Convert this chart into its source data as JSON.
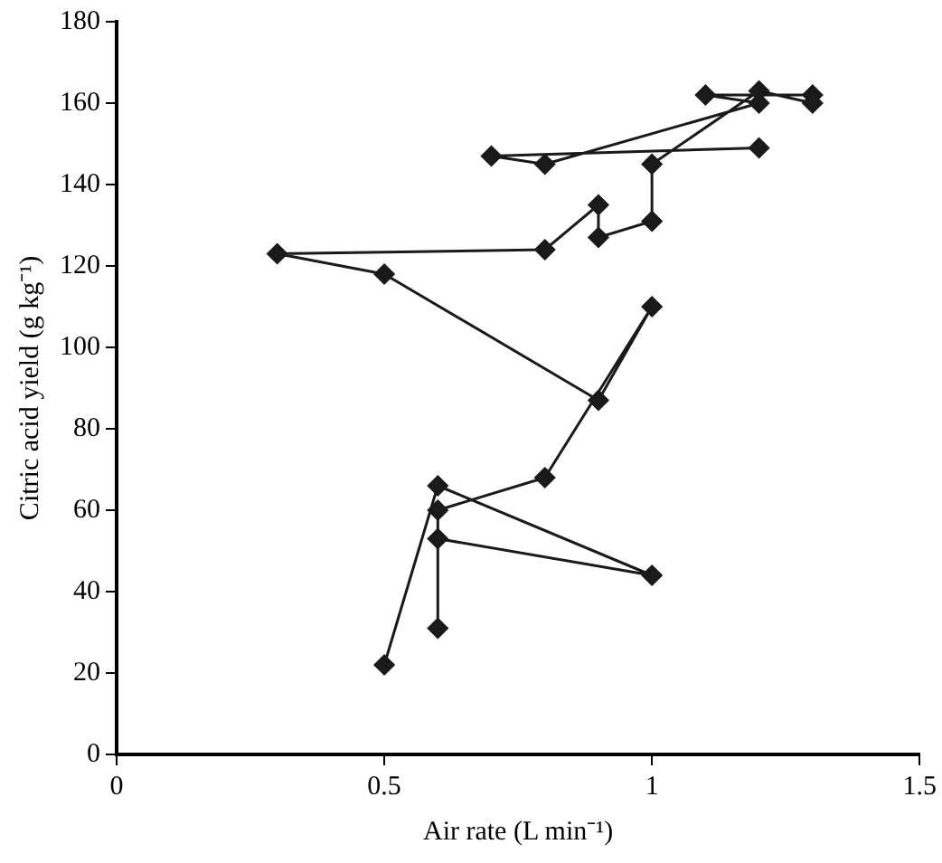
{
  "chart_data": {
    "type": "line",
    "xlabel": "Air rate (L min⁻¹)",
    "ylabel": "Citric acid yield (g kg⁻¹)",
    "x": [
      0.5,
      0.6,
      1.0,
      0.6,
      0.6,
      0.6,
      0.8,
      1.0,
      0.9,
      0.5,
      0.3,
      0.8,
      0.9,
      0.9,
      1.0,
      1.0,
      1.2,
      1.3,
      1.3,
      1.1,
      1.2,
      0.8,
      0.7,
      1.2
    ],
    "series": [
      {
        "color": "#1a1a1a",
        "values": [
          22,
          66,
          44,
          53,
          31,
          60,
          68,
          110,
          87,
          118,
          123,
          124,
          135,
          127,
          131,
          145,
          163,
          160,
          162,
          162,
          160,
          145,
          147,
          149
        ]
      }
    ],
    "xlim": [
      0,
      1.5
    ],
    "xticks": [
      0,
      0.5,
      1,
      1.5
    ],
    "ylim": [
      0,
      180
    ],
    "yticks": [
      0,
      20,
      40,
      60,
      80,
      100,
      120,
      140,
      160,
      180
    ],
    "grid": false,
    "legend": false,
    "marker": "diamond",
    "line_style": "solid"
  }
}
